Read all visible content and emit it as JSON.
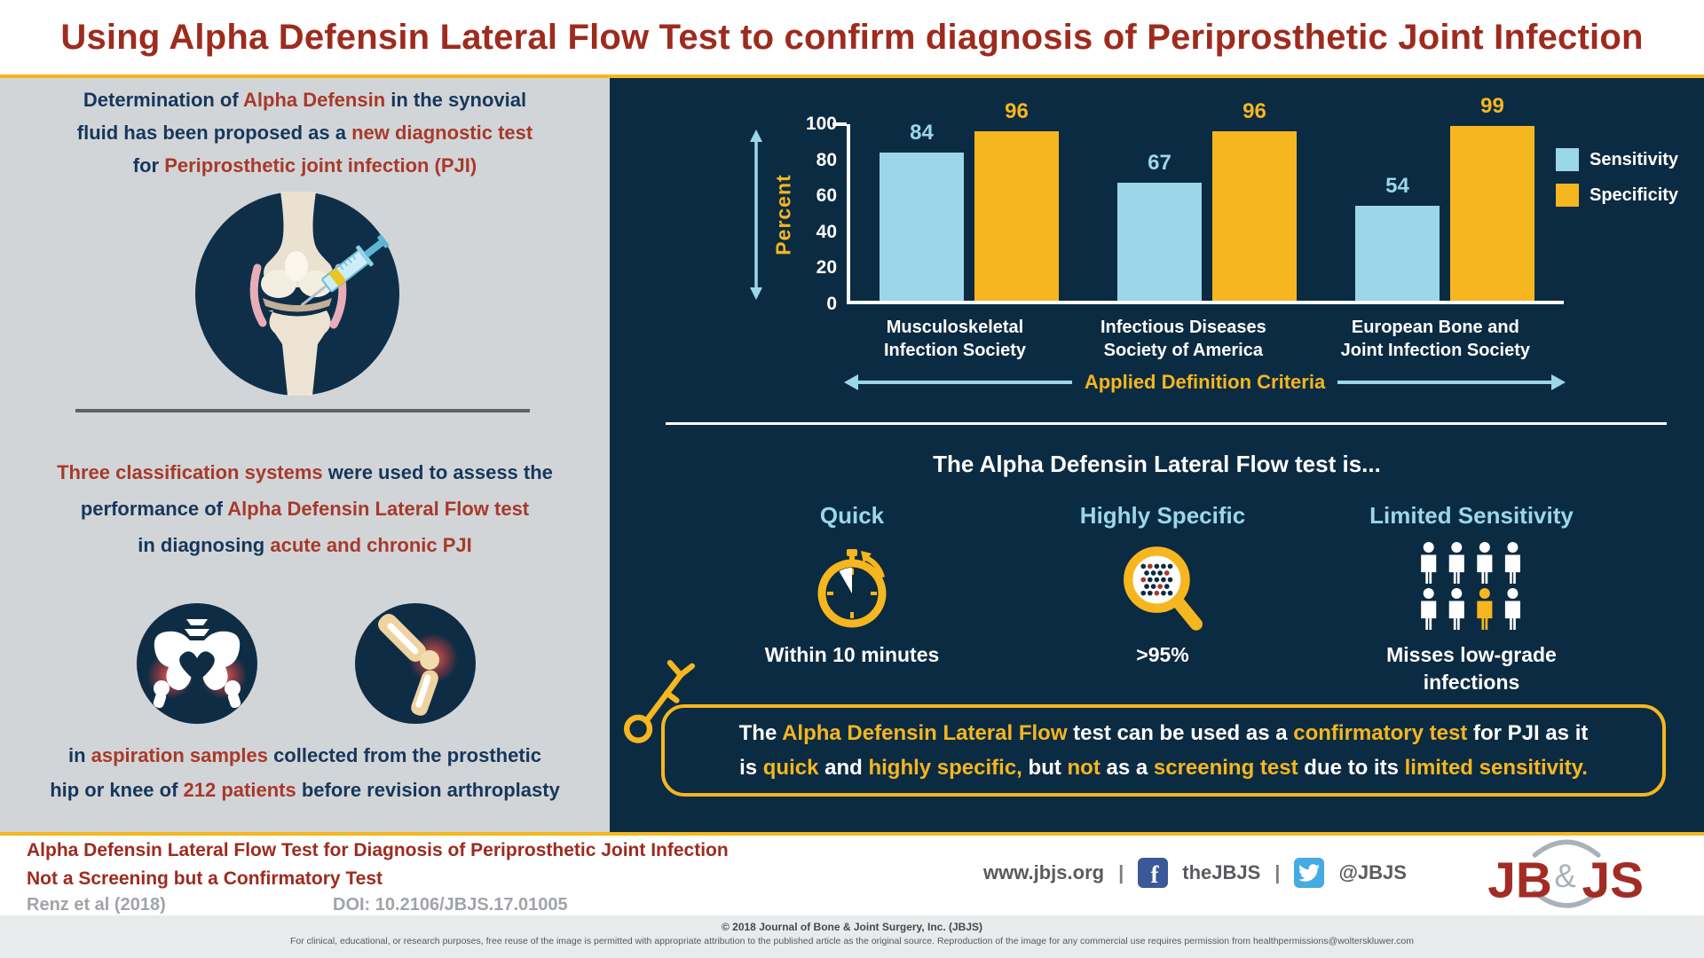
{
  "title": "Using Alpha Defensin Lateral Flow Test to confirm diagnosis of Periprosthetic Joint Infection",
  "colors": {
    "navy_bg": "#0b2b42",
    "panel_gray": "#d2d5d8",
    "gold": "#f6b61f",
    "light_blue": "#9bd6e9",
    "dark_red": "#9d2b1e",
    "body_red": "#a8392a",
    "body_navy": "#16375a"
  },
  "left_panel": {
    "p1": {
      "a": "Determination of ",
      "b": "Alpha Defensin",
      "c": " in the synovial",
      "d": "fluid has been proposed as a ",
      "e": "new diagnostic test",
      "f": "for ",
      "g": "Periprosthetic joint infection (PJI)"
    },
    "p2": {
      "a": "Three classification systems",
      "b": " were used to assess the",
      "c": "performance of ",
      "d": "Alpha Defensin Lateral Flow test",
      "e": "in diagnosing ",
      "f": "acute and chronic PJI"
    },
    "p3": {
      "a": "in ",
      "b": "aspiration samples",
      "c": " collected from the prosthetic",
      "d": "hip or knee of ",
      "e": "212 patients",
      "f": " before revision arthroplasty"
    }
  },
  "chart_data": {
    "type": "bar",
    "categories": [
      "Musculoskeletal Infection Society",
      "Infectious Diseases Society of America",
      "European Bone and Joint Infection Society"
    ],
    "category_lines": [
      [
        "Musculoskeletal",
        "Infection Society"
      ],
      [
        "Infectious Diseases",
        "Society of America"
      ],
      [
        "European Bone and",
        "Joint Infection Society"
      ]
    ],
    "series": [
      {
        "name": "Sensitivity",
        "values": [
          84,
          67,
          54
        ],
        "color": "#9bd6e9"
      },
      {
        "name": "Specificity",
        "values": [
          96,
          96,
          99
        ],
        "color": "#f6b61f"
      }
    ],
    "ylabel": "Percent",
    "xlabel": "Applied Definition Criteria",
    "ylim": [
      0,
      100
    ],
    "yticks": [
      0,
      20,
      40,
      60,
      80,
      100
    ],
    "grid": false,
    "legend_position": "right"
  },
  "right_panel": {
    "headline": "The Alpha Defensin Lateral Flow test is...",
    "features": [
      {
        "label": "Quick",
        "icon": "stopwatch-icon",
        "caption": "Within 10 minutes"
      },
      {
        "label": "Highly Specific",
        "icon": "magnifier-icon",
        "caption": ">95%"
      },
      {
        "label": "Limited Sensitivity",
        "icon": "people-icon",
        "caption": "Misses low-grade infections"
      }
    ],
    "callout": {
      "a": "The ",
      "b": "Alpha Defensin Lateral Flow",
      "c": " test can be used as a ",
      "d": "confirmatory test",
      "e": " for PJI as it",
      "f": "is ",
      "g": "quick",
      "h": " and ",
      "i": "highly specific,",
      "j": " but ",
      "k": "not",
      "l": " as a ",
      "m": "screening test",
      "n": " due to its ",
      "o": "limited sensitivity."
    }
  },
  "footer": {
    "article_title_line1": "Alpha Defensin Lateral Flow Test for Diagnosis of Periprosthetic Joint Infection",
    "article_title_line2": "Not a Screening but a Confirmatory Test",
    "citation": "Renz et al (2018)",
    "doi": "DOI: 10.2106/JBJS.17.01005",
    "website": "www.jbjs.org",
    "separator": "|",
    "facebook_handle": "theJBJS",
    "twitter_handle": "@JBJS",
    "logo": {
      "jb": "JB",
      "amp": "&",
      "js": "JS"
    }
  },
  "copyright": {
    "line1": "© 2018 Journal of Bone & Joint Surgery, Inc. (JBJS)",
    "line2": "For clinical, educational, or research purposes, free reuse of the image is permitted with appropriate attribution to the published article as the original source. Reproduction of the image for any commercial use requires permission from healthpermissions@wolterskluwer.com"
  }
}
